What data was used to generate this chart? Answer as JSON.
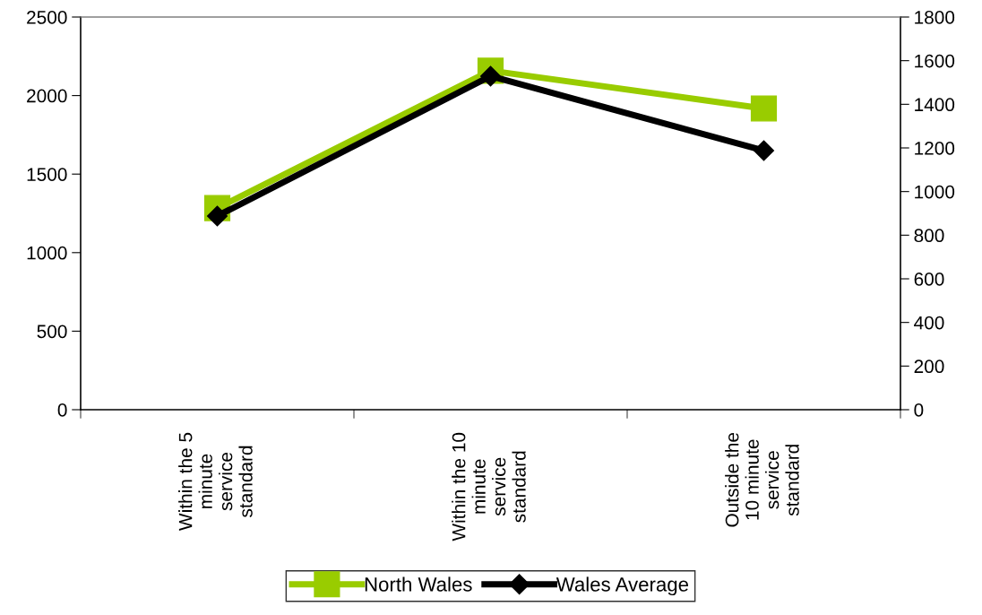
{
  "chart_data": {
    "type": "line",
    "categories": [
      "Within the 5\nminute\nservice\nstandard",
      "Within the 10\nminute\nservice\nstandard",
      "Outside the\n10 minute\nservice\nstandard"
    ],
    "series": [
      {
        "name": "North Wales",
        "color": "#99cc00",
        "values": [
          1284,
          2158,
          1918
        ],
        "marker": "square"
      },
      {
        "name": "Wales Average",
        "color": "#000000",
        "values": [
          888,
          1529,
          1188
        ],
        "marker": "diamond",
        "axis": "y2"
      }
    ],
    "ylim": [
      0,
      2500
    ],
    "yticks": [
      0,
      500,
      1000,
      1500,
      2000,
      2500
    ],
    "y2lim": [
      0,
      1800
    ],
    "y2ticks": [
      0,
      200,
      400,
      600,
      800,
      1000,
      1200,
      1400,
      1600,
      1800
    ],
    "grid": false,
    "legend": "bottom",
    "line_style": "solid"
  }
}
